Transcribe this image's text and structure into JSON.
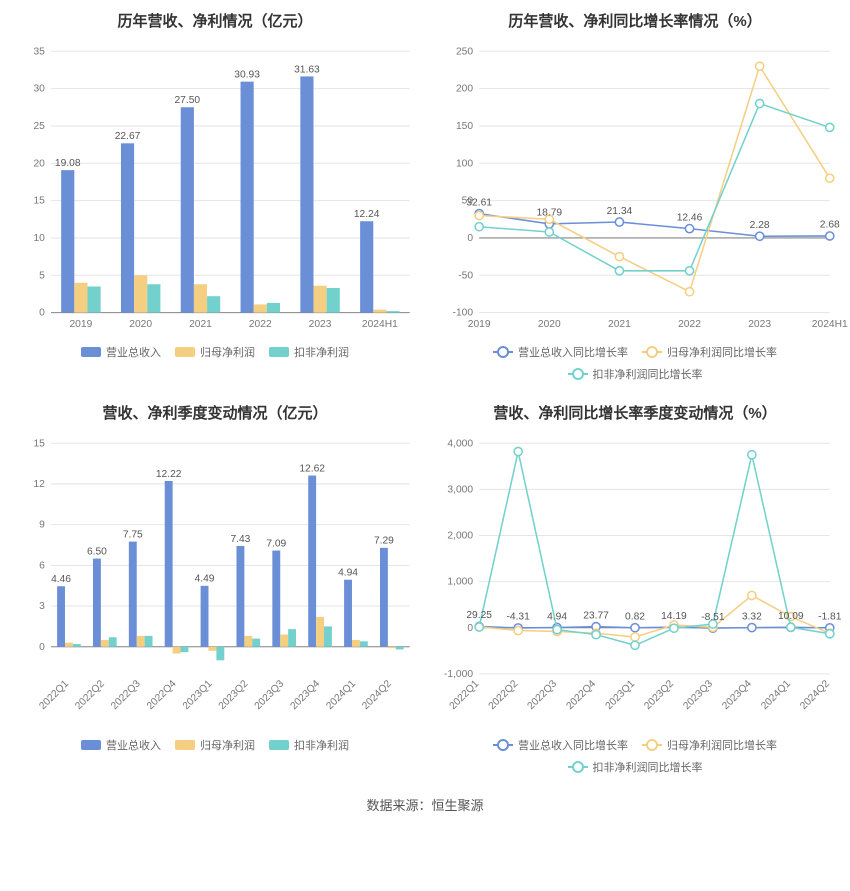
{
  "footer": "数据来源：恒生聚源",
  "colors": {
    "series1": "#6a8fd6",
    "series2": "#f4cf82",
    "series3": "#73d1cd",
    "grid": "#e5e5e5",
    "axis": "#888888",
    "text": "#555555",
    "background": "#ffffff"
  },
  "chart1": {
    "title": "历年营收、净利情况（亿元）",
    "type": "bar",
    "categories": [
      "2019",
      "2020",
      "2021",
      "2022",
      "2023",
      "2024H1"
    ],
    "series": [
      {
        "name": "营业总收入",
        "color": "#6a8fd6",
        "values": [
          19.08,
          22.67,
          27.5,
          30.93,
          31.63,
          12.24
        ],
        "show_label": true
      },
      {
        "name": "归母净利润",
        "color": "#f4cf82",
        "values": [
          4.0,
          5.0,
          3.8,
          1.1,
          3.6,
          0.4
        ],
        "show_label": false
      },
      {
        "name": "扣非净利润",
        "color": "#73d1cd",
        "values": [
          3.5,
          3.8,
          2.2,
          1.3,
          3.3,
          0.2
        ],
        "show_label": false
      }
    ],
    "ylim": [
      0,
      35
    ],
    "ytick_step": 5,
    "bar_width": 0.22,
    "title_fontsize": 15,
    "label_fontsize": 10
  },
  "chart2": {
    "title": "历年营收、净利同比增长率情况（%）",
    "type": "line",
    "categories": [
      "2019",
      "2020",
      "2021",
      "2022",
      "2023",
      "2024H1"
    ],
    "series": [
      {
        "name": "营业总收入同比增长率",
        "color": "#6a8fd6",
        "values": [
          32.61,
          18.79,
          21.34,
          12.46,
          2.28,
          2.68
        ],
        "show_label": true
      },
      {
        "name": "归母净利润同比增长率",
        "color": "#f4cf82",
        "values": [
          30,
          25,
          -25,
          -72,
          230,
          80
        ],
        "show_label": false
      },
      {
        "name": "扣非净利润同比增长率",
        "color": "#73d1cd",
        "values": [
          15,
          8,
          -44,
          -44,
          180,
          148
        ],
        "show_label": false
      }
    ],
    "ylim": [
      -100,
      250
    ],
    "ytick_step": 50,
    "marker_size": 4,
    "line_width": 1.5,
    "title_fontsize": 15,
    "label_fontsize": 10
  },
  "chart3": {
    "title": "营收、净利季度变动情况（亿元）",
    "type": "bar",
    "categories": [
      "2022Q1",
      "2022Q2",
      "2022Q3",
      "2022Q4",
      "2023Q1",
      "2023Q2",
      "2023Q3",
      "2023Q4",
      "2024Q1",
      "2024Q2"
    ],
    "series": [
      {
        "name": "营业总收入",
        "color": "#6a8fd6",
        "values": [
          4.46,
          6.5,
          7.75,
          12.22,
          4.49,
          7.43,
          7.09,
          12.62,
          4.94,
          7.29
        ],
        "show_label": true
      },
      {
        "name": "归母净利润",
        "color": "#f4cf82",
        "values": [
          0.3,
          0.5,
          0.8,
          -0.5,
          -0.3,
          0.8,
          0.9,
          2.2,
          0.5,
          -0.1
        ],
        "show_label": false
      },
      {
        "name": "扣非净利润",
        "color": "#73d1cd",
        "values": [
          0.2,
          0.7,
          0.8,
          -0.4,
          -1.0,
          0.6,
          1.3,
          1.5,
          0.4,
          -0.2
        ],
        "show_label": false
      }
    ],
    "ylim": [
      -2,
      15
    ],
    "ytick_step": 3,
    "yticks": [
      0,
      3,
      6,
      9,
      12,
      15
    ],
    "bar_width": 0.22,
    "x_label_rotate": -45,
    "title_fontsize": 15,
    "label_fontsize": 10
  },
  "chart4": {
    "title": "营收、净利同比增长率季度变动情况（%）",
    "type": "line",
    "categories": [
      "2022Q1",
      "2022Q2",
      "2022Q3",
      "2022Q4",
      "2023Q1",
      "2023Q2",
      "2023Q3",
      "2023Q4",
      "2024Q1",
      "2024Q2"
    ],
    "series": [
      {
        "name": "营业总收入同比增长率",
        "color": "#6a8fd6",
        "values": [
          29.25,
          -4.31,
          4.94,
          23.77,
          0.82,
          14.19,
          -8.51,
          3.32,
          10.09,
          -1.81
        ],
        "show_label": true
      },
      {
        "name": "归母净利润同比增长率",
        "color": "#f4cf82",
        "values": [
          20,
          -60,
          -80,
          -120,
          -200,
          60,
          10,
          700,
          240,
          -120
        ],
        "show_label": false
      },
      {
        "name": "扣非净利润同比增长率",
        "color": "#73d1cd",
        "values": [
          15,
          3820,
          -40,
          -150,
          -380,
          -10,
          80,
          3750,
          10,
          -130
        ],
        "show_label": false
      }
    ],
    "ylim": [
      -1000,
      4000
    ],
    "ytick_step": 1000,
    "marker_size": 4,
    "line_width": 1.5,
    "x_label_rotate": -45,
    "title_fontsize": 15,
    "label_fontsize": 10
  }
}
